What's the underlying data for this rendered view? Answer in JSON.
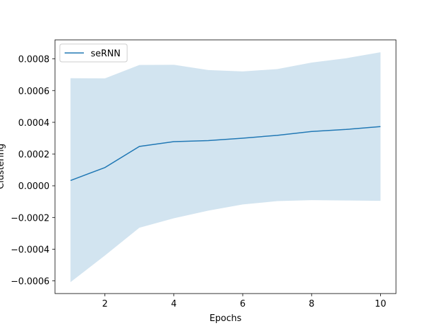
{
  "chart_data": {
    "type": "line",
    "xlabel": "Epochs",
    "ylabel": "Clustering",
    "xlim": [
      0.55,
      10.45
    ],
    "ylim": [
      -0.00068,
      0.00092
    ],
    "x_ticks": [
      2,
      4,
      6,
      8,
      10
    ],
    "y_ticks": [
      -0.0006,
      -0.0004,
      -0.0002,
      0.0,
      0.0002,
      0.0004,
      0.0006,
      0.0008
    ],
    "y_tick_labels": [
      "−0.0006",
      "−0.0004",
      "−0.0002",
      "0.0000",
      "0.0002",
      "0.0004",
      "0.0006",
      "0.0008"
    ],
    "grid": false,
    "legend_position": "upper-left",
    "series": [
      {
        "name": "seRNN",
        "color": "#1f77b4",
        "band_color": "#1f77b4",
        "x": [
          1,
          2,
          3,
          4,
          5,
          6,
          7,
          8,
          9,
          10
        ],
        "y": [
          3.3e-05,
          0.000115,
          0.000248,
          0.000278,
          0.000285,
          0.0003,
          0.000318,
          0.000342,
          0.000355,
          0.000373
        ],
        "upper": [
          0.000678,
          0.000677,
          0.000762,
          0.000763,
          0.00073,
          0.000721,
          0.000736,
          0.000777,
          0.000804,
          0.000842
        ],
        "lower": [
          -0.000608,
          -0.00044,
          -0.000265,
          -0.000205,
          -0.000157,
          -0.000118,
          -9.7e-05,
          -9.1e-05,
          -9.3e-05,
          -9.5e-05
        ]
      }
    ]
  }
}
